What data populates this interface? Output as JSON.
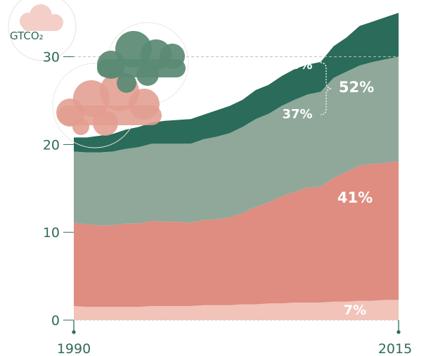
{
  "chart_data": {
    "type": "area",
    "stacked": true,
    "ylabel": "GTCO₂",
    "ylim": [
      0,
      35
    ],
    "yticks": [
      "0",
      "10",
      "20",
      "30"
    ],
    "xticks": [
      "1990",
      "2015"
    ],
    "reference_line": 30,
    "x": [
      1990,
      1991,
      1992,
      1993,
      1994,
      1995,
      1996,
      1997,
      1998,
      1999,
      2000,
      2001,
      2002,
      2003,
      2004,
      2005,
      2006,
      2007,
      2008,
      2009,
      2010,
      2011,
      2012,
      2013,
      2014,
      2015
    ],
    "series": [
      {
        "color": "#f2c3b8",
        "values": [
          1.6,
          1.5,
          1.5,
          1.5,
          1.5,
          1.5,
          1.6,
          1.6,
          1.6,
          1.6,
          1.7,
          1.7,
          1.7,
          1.8,
          1.8,
          1.9,
          1.9,
          2.0,
          2.0,
          2.0,
          2.1,
          2.1,
          2.2,
          2.2,
          2.3,
          2.3
        ]
      },
      {
        "color": "#de8d80",
        "values": [
          9.5,
          9.4,
          9.3,
          9.3,
          9.5,
          9.5,
          9.7,
          9.6,
          9.6,
          9.5,
          9.7,
          9.8,
          10.0,
          10.4,
          11.1,
          11.5,
          12.2,
          12.6,
          13.1,
          13.2,
          14.1,
          14.8,
          15.4,
          15.6,
          15.6,
          15.8
        ]
      },
      {
        "color": "#8fa89a",
        "values": [
          8.1,
          8.2,
          8.3,
          8.4,
          8.5,
          8.7,
          8.8,
          8.9,
          8.9,
          9.0,
          9.2,
          9.4,
          9.6,
          9.8,
          10.0,
          10.1,
          10.3,
          10.5,
          10.6,
          10.8,
          11.4,
          11.4,
          11.4,
          11.6,
          11.8,
          11.9
        ]
      },
      {
        "color": "#2a6b5a",
        "values": [
          1.6,
          1.7,
          1.9,
          2.0,
          2.2,
          2.3,
          2.4,
          2.6,
          2.7,
          2.8,
          2.8,
          3.0,
          3.1,
          3.1,
          3.3,
          3.3,
          3.4,
          3.5,
          3.4,
          3.4,
          3.6,
          3.9,
          4.5,
          4.6,
          4.8,
          5.0
        ]
      }
    ],
    "annotations": [
      {
        "label": "15%"
      },
      {
        "label": "37%"
      },
      {
        "label": "52%"
      },
      {
        "label": "41%"
      },
      {
        "label": "7%"
      }
    ]
  },
  "colors": {
    "axis": "#2f6b5b",
    "cloud_dark": "#5a8a74",
    "cloud_light": "#e9a79a"
  }
}
